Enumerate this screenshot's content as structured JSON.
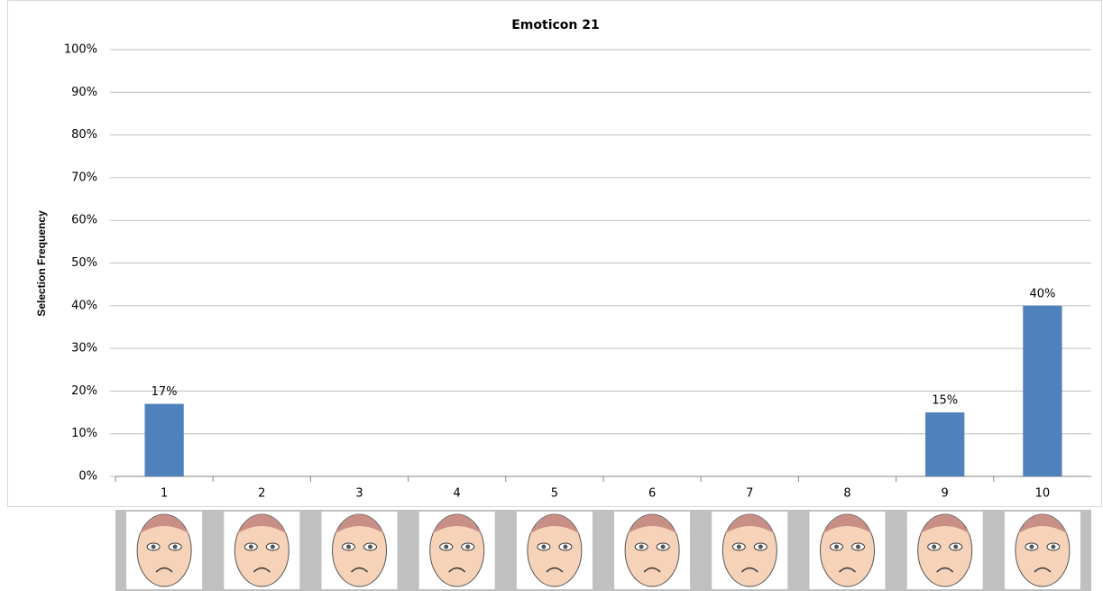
{
  "chart_data": {
    "type": "bar",
    "title": "Emoticon 21",
    "y_label": "Selection Frequency",
    "categories": [
      "1",
      "2",
      "3",
      "4",
      "5",
      "6",
      "7",
      "8",
      "9",
      "10"
    ],
    "values": [
      17,
      0,
      0,
      0,
      0,
      0,
      0,
      0,
      15,
      40
    ],
    "value_labels": [
      "17%",
      null,
      null,
      null,
      null,
      null,
      null,
      null,
      "15%",
      "40%"
    ],
    "color": "#4f81bd",
    "ylim": [
      0,
      100
    ],
    "yticks": [
      {
        "value": 0,
        "label": "0%"
      },
      {
        "value": 10,
        "label": "10%"
      },
      {
        "value": 20,
        "label": "20%"
      },
      {
        "value": 30,
        "label": "30%"
      },
      {
        "value": 40,
        "label": "40%"
      },
      {
        "value": 50,
        "label": "50%"
      },
      {
        "value": 60,
        "label": "60%"
      },
      {
        "value": 70,
        "label": "70%"
      },
      {
        "value": 80,
        "label": "80%"
      },
      {
        "value": 90,
        "label": "90%"
      },
      {
        "value": 100,
        "label": "100%"
      }
    ],
    "grid": true
  }
}
